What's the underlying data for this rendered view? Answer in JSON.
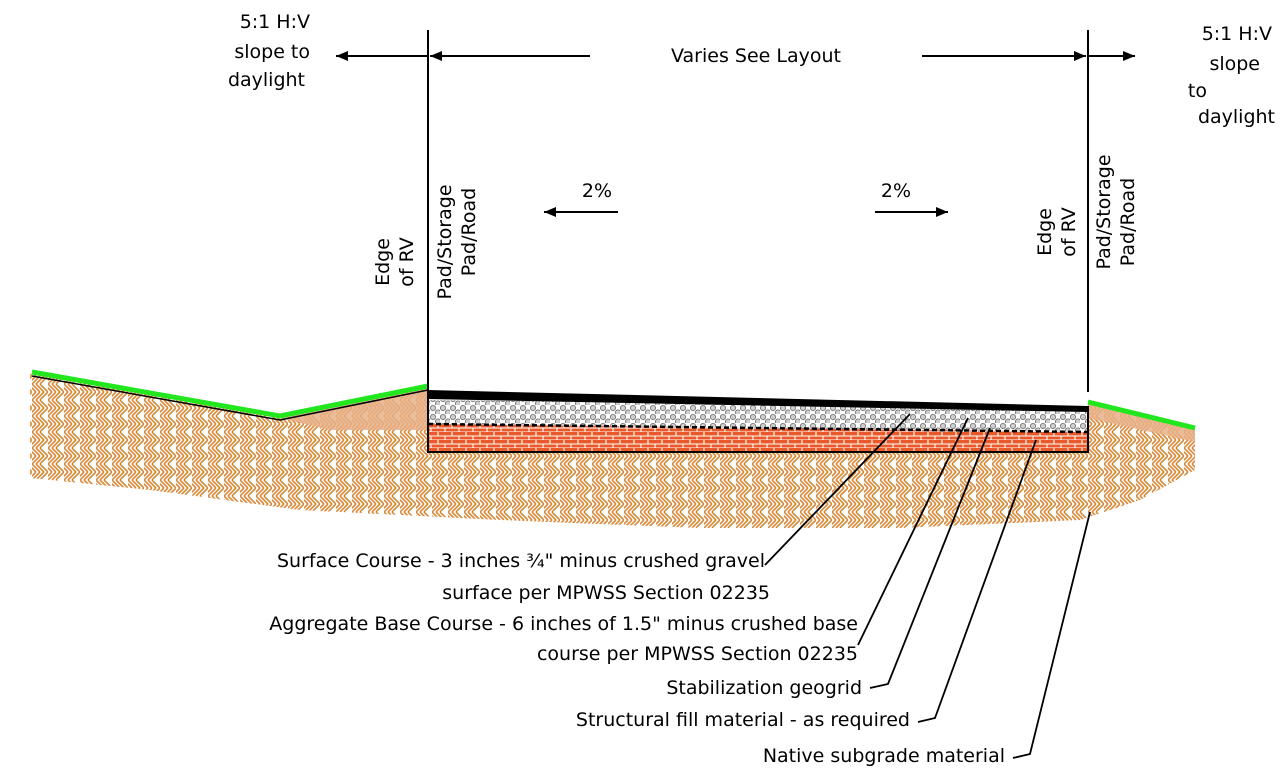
{
  "dimension": {
    "left_slope": [
      "5:1 H:V",
      "slope to",
      "daylight"
    ],
    "right_slope": [
      "5:1 H:V",
      "slope",
      "to",
      "daylight"
    ],
    "width": "Varies See Layout"
  },
  "slopes": {
    "left": "2%",
    "right": "2%"
  },
  "edges": {
    "left": [
      "Edge",
      "of RV",
      "Pad/Storage",
      "Pad/Road"
    ],
    "right": [
      "Edge",
      "of RV",
      "Pad/Storage",
      "Pad/Road"
    ]
  },
  "callouts": {
    "surface_course_1": "Surface Course - 3 inches ¾\" minus crushed gravel",
    "surface_course_2": "surface per MPWSS Section 02235",
    "base_course_1": "Aggregate Base Course - 6 inches of 1.5\" minus crushed base",
    "base_course_2": "course per MPWSS Section 02235",
    "geogrid": "Stabilization geogrid",
    "structural_fill": "Structural fill material - as required",
    "native_subgrade": "Native subgrade material"
  },
  "colors": {
    "grass": "#22e61e",
    "subgrade": "#d98a3a",
    "fill": "#e85a2a",
    "gravel": "#c8c8c8",
    "surface": "#000000"
  }
}
